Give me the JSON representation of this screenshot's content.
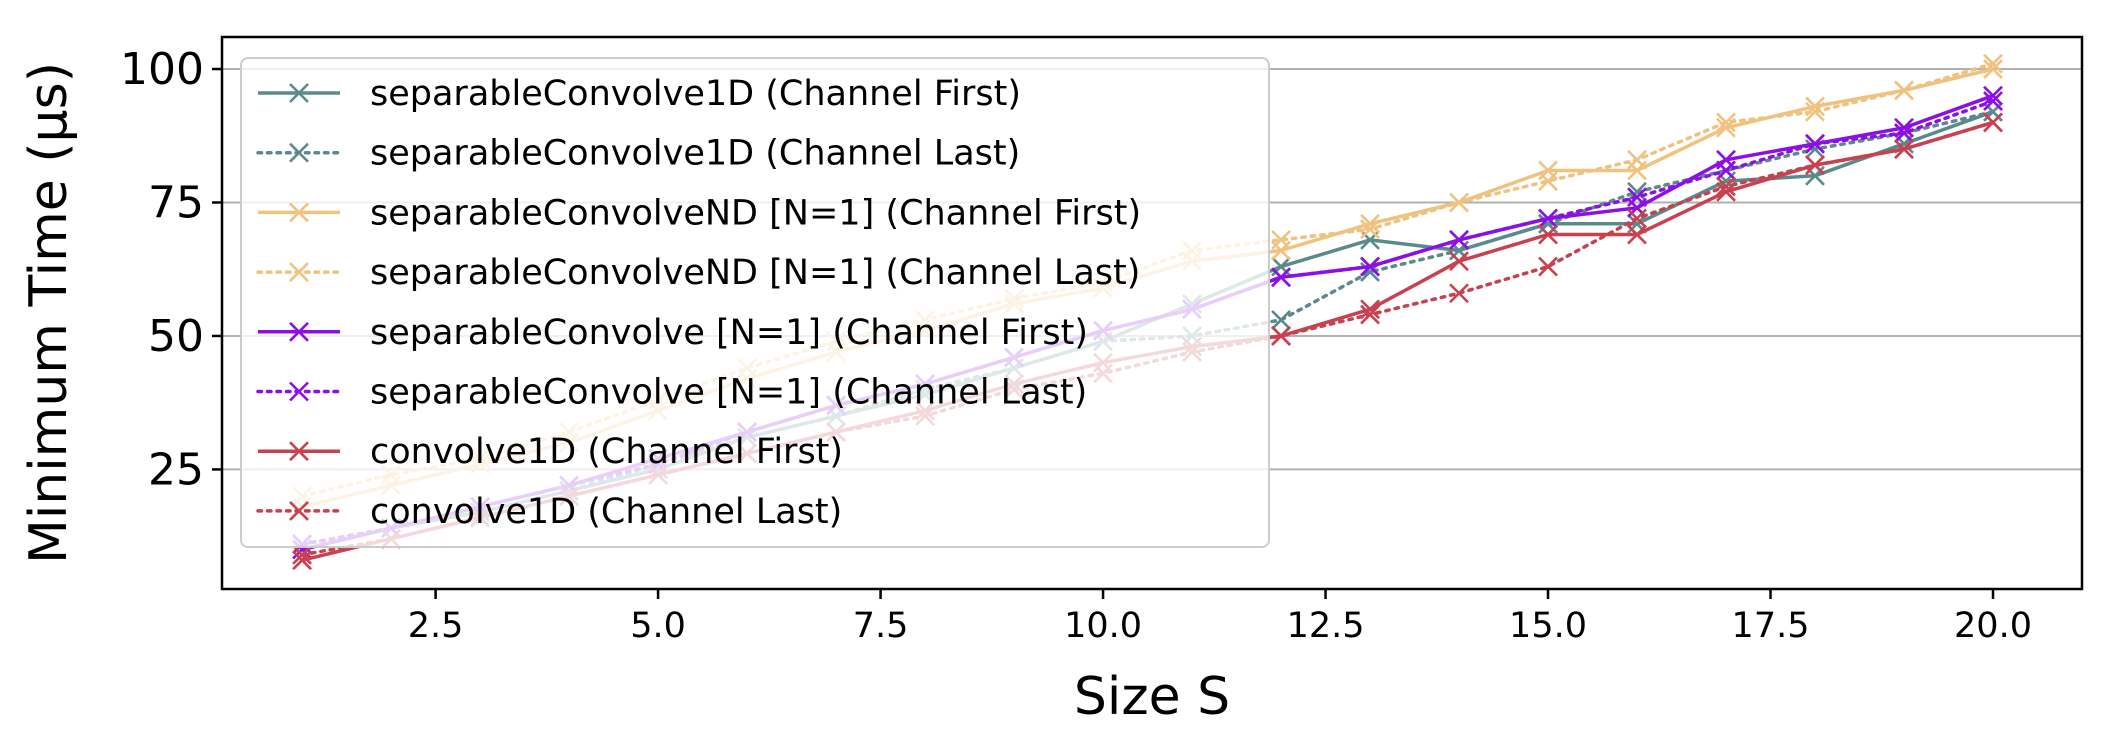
{
  "chart_data": {
    "type": "line",
    "title": "",
    "xlabel": "Size S",
    "ylabel": "Minimum Time (µs)",
    "xlim": [
      0.1,
      21.0
    ],
    "ylim": [
      2.6,
      106
    ],
    "xticks": [
      2.5,
      5.0,
      7.5,
      10.0,
      12.5,
      15.0,
      17.5,
      20.0
    ],
    "xtick_labels": [
      "2.5",
      "5.0",
      "7.5",
      "10.0",
      "12.5",
      "15.0",
      "17.5",
      "20.0"
    ],
    "yticks": [
      25,
      50,
      75,
      100
    ],
    "ytick_labels": [
      "25",
      "50",
      "75",
      "100"
    ],
    "grid": "horizontal",
    "legend_position": "upper-left",
    "x": [
      1,
      2,
      3,
      4,
      5,
      6,
      7,
      8,
      9,
      10,
      11,
      12,
      13,
      14,
      15,
      16,
      17,
      18,
      19,
      20
    ],
    "series": [
      {
        "name": "separableConvolve1D (Channel First)",
        "color": "#5b8a8c",
        "style": "solid",
        "values": [
          10,
          14,
          17,
          21,
          25,
          31,
          35,
          39,
          44,
          49,
          56,
          63,
          68,
          66,
          71,
          71,
          79,
          80,
          86,
          92
        ]
      },
      {
        "name": "separableConvolve1D (Channel Last)",
        "color": "#5b8a8c",
        "style": "dotted",
        "values": [
          11,
          14,
          17,
          21,
          26,
          31,
          35,
          40,
          44,
          49,
          50,
          53,
          62,
          66,
          71,
          77,
          81,
          85,
          88,
          92
        ]
      },
      {
        "name": "separableConvolveND [N=1] (Channel First)",
        "color": "#f0c27f",
        "style": "solid",
        "values": [
          18,
          22,
          26,
          30,
          36,
          42,
          47,
          51,
          56,
          59,
          64,
          66,
          71,
          75,
          81,
          81,
          89,
          93,
          96,
          100
        ]
      },
      {
        "name": "separableConvolveND [N=1] (Channel Last)",
        "color": "#f0c27f",
        "style": "dotted",
        "values": [
          20,
          24,
          27,
          32,
          38,
          44,
          49,
          53,
          57,
          60,
          66,
          68,
          70,
          75,
          79,
          83,
          90,
          92,
          96,
          101
        ]
      },
      {
        "name": "separableConvolve [N=1] (Channel First)",
        "color": "#8b0fe6",
        "style": "solid",
        "values": [
          10,
          14,
          18,
          22,
          27,
          32,
          37,
          41,
          46,
          51,
          55,
          61,
          63,
          68,
          72,
          74,
          83,
          86,
          89,
          95
        ]
      },
      {
        "name": "separableConvolve [N=1] (Channel Last)",
        "color": "#8b0fe6",
        "style": "dotted",
        "values": [
          11,
          14,
          18,
          22,
          26,
          32,
          37,
          41,
          46,
          51,
          55,
          61,
          63,
          68,
          72,
          76,
          81,
          86,
          88,
          94
        ]
      },
      {
        "name": "convolve1D (Channel First)",
        "color": "#c8414f",
        "style": "solid",
        "values": [
          8,
          12,
          16,
          20,
          24,
          28,
          32,
          36,
          41,
          45,
          48,
          50,
          55,
          64,
          69,
          69,
          77,
          82,
          85,
          90
        ]
      },
      {
        "name": "convolve1D (Channel Last)",
        "color": "#c8414f",
        "style": "dotted",
        "values": [
          9,
          12,
          16,
          20,
          24,
          28,
          32,
          35,
          40,
          43,
          47,
          50,
          54,
          58,
          63,
          72,
          78,
          82,
          85,
          90
        ]
      }
    ]
  }
}
